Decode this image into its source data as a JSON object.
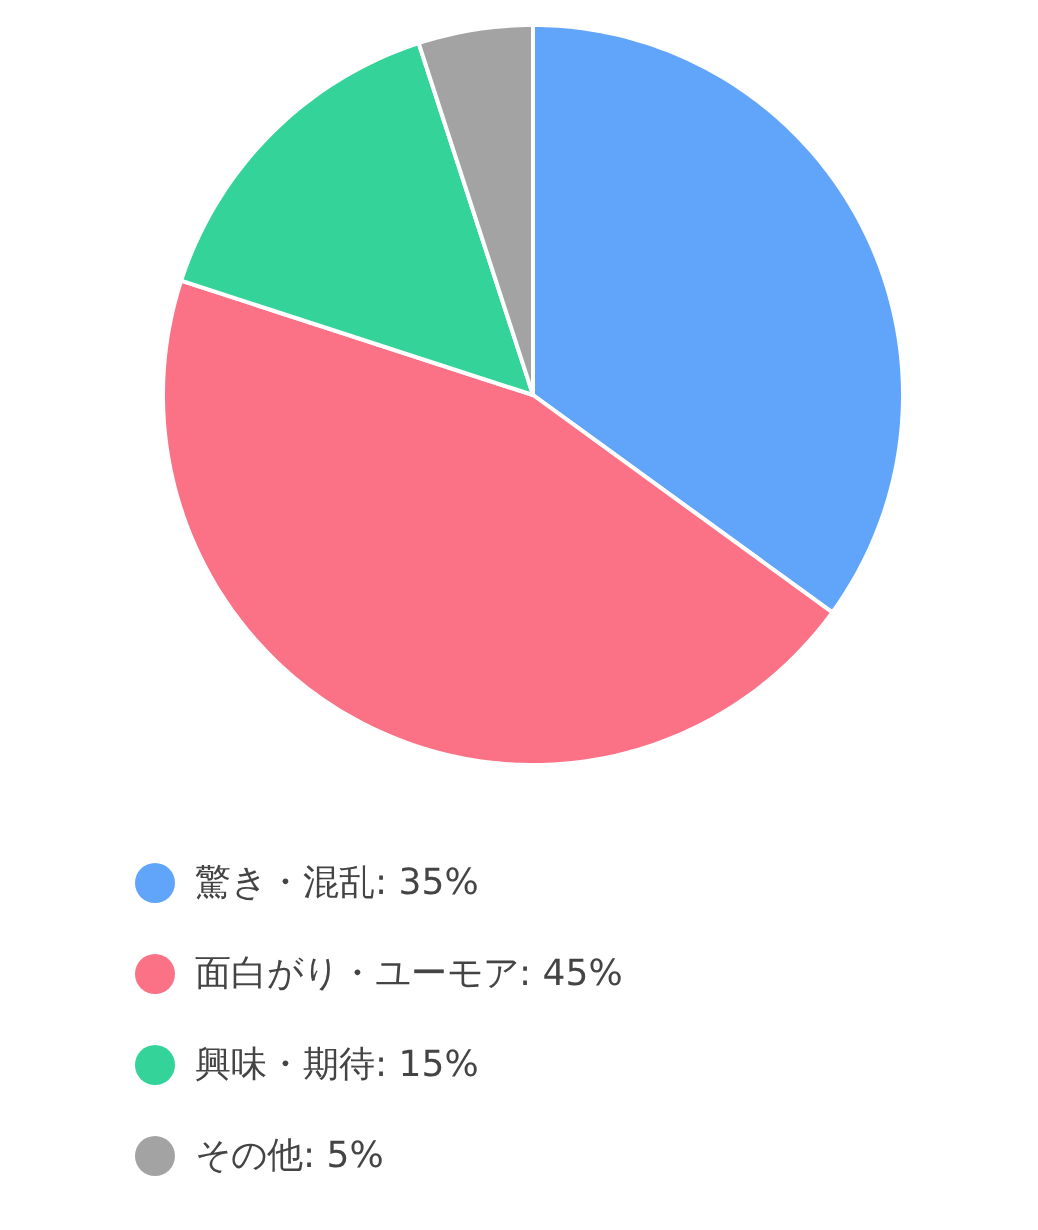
{
  "chart_data": {
    "type": "pie",
    "categories": [
      "驚き・混乱",
      "面白がり・ユーモア",
      "興味・期待",
      "その他"
    ],
    "values": [
      35,
      45,
      15,
      5
    ],
    "value_labels": [
      "35%",
      "45%",
      "15%",
      "5%"
    ],
    "colors": [
      "#60a5fa",
      "#fb7185",
      "#34d399",
      "#a3a3a3"
    ],
    "legend": "bottom"
  }
}
